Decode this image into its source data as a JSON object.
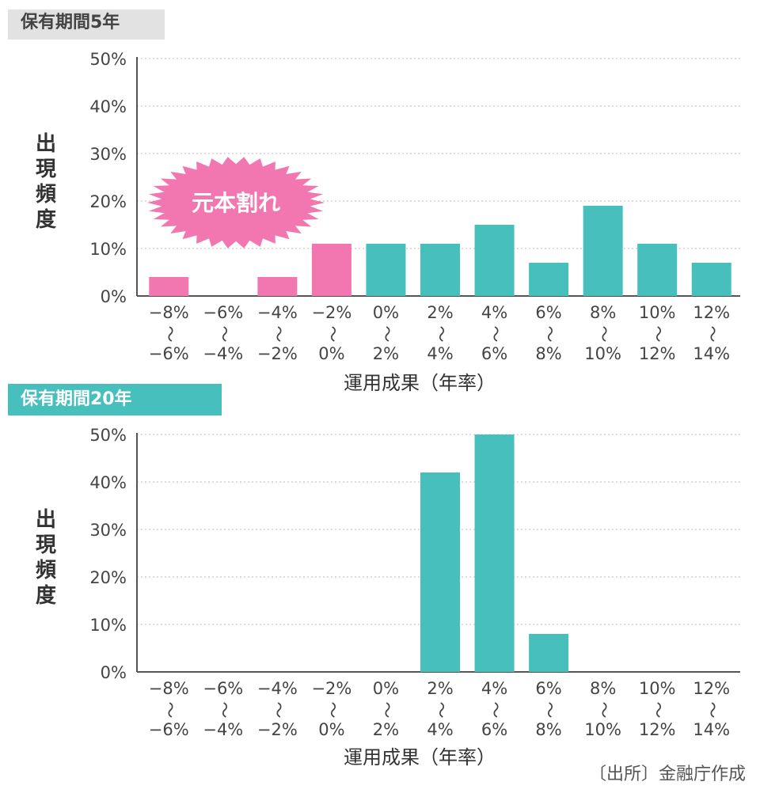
{
  "panels": [
    {
      "tag": "保有期間5年",
      "ylabel_chars": [
        "出",
        "現",
        "頻",
        "度"
      ],
      "xlabel": "運用成果（年率）",
      "callout": "元本割れ"
    },
    {
      "tag": "保有期間20年",
      "ylabel_chars": [
        "出",
        "現",
        "頻",
        "度"
      ],
      "xlabel": "運用成果（年率）"
    }
  ],
  "source": "〔出所〕金融庁作成",
  "colors": {
    "loss": "#f276b0",
    "gain": "#47bfbc",
    "grid": "#bbbbbb",
    "axis": "#555555"
  },
  "chart_data": [
    {
      "type": "bar",
      "title": "保有期間5年",
      "xlabel": "運用成果（年率）",
      "ylabel": "出現頻度",
      "ylim": [
        0,
        50
      ],
      "yticks": [
        "0%",
        "10%",
        "20%",
        "30%",
        "40%",
        "50%"
      ],
      "categories": [
        [
          "−8%",
          "〜",
          "−6%"
        ],
        [
          "−6%",
          "〜",
          "−4%"
        ],
        [
          "−4%",
          "〜",
          "−2%"
        ],
        [
          "−2%",
          "〜",
          "0%"
        ],
        [
          "0%",
          "〜",
          "2%"
        ],
        [
          "2%",
          "〜",
          "4%"
        ],
        [
          "4%",
          "〜",
          "6%"
        ],
        [
          "6%",
          "〜",
          "8%"
        ],
        [
          "8%",
          "〜",
          "10%"
        ],
        [
          "10%",
          "〜",
          "12%"
        ],
        [
          "12%",
          "〜",
          "14%"
        ]
      ],
      "values": [
        4,
        0,
        4,
        11,
        11,
        11,
        15,
        7,
        19,
        11,
        7
      ],
      "loss_flags": [
        true,
        true,
        true,
        true,
        false,
        false,
        false,
        false,
        false,
        false,
        false
      ],
      "grid": true
    },
    {
      "type": "bar",
      "title": "保有期間20年",
      "xlabel": "運用成果（年率）",
      "ylabel": "出現頻度",
      "ylim": [
        0,
        50
      ],
      "yticks": [
        "0%",
        "10%",
        "20%",
        "30%",
        "40%",
        "50%"
      ],
      "categories": [
        [
          "−8%",
          "〜",
          "−6%"
        ],
        [
          "−6%",
          "〜",
          "−4%"
        ],
        [
          "−4%",
          "〜",
          "−2%"
        ],
        [
          "−2%",
          "〜",
          "0%"
        ],
        [
          "0%",
          "〜",
          "2%"
        ],
        [
          "2%",
          "〜",
          "4%"
        ],
        [
          "4%",
          "〜",
          "6%"
        ],
        [
          "6%",
          "〜",
          "8%"
        ],
        [
          "8%",
          "〜",
          "10%"
        ],
        [
          "10%",
          "〜",
          "12%"
        ],
        [
          "12%",
          "〜",
          "14%"
        ]
      ],
      "values": [
        0,
        0,
        0,
        0,
        0,
        42,
        50,
        8,
        0,
        0,
        0
      ],
      "loss_flags": [
        true,
        true,
        true,
        true,
        false,
        false,
        false,
        false,
        false,
        false,
        false
      ],
      "grid": true
    }
  ]
}
